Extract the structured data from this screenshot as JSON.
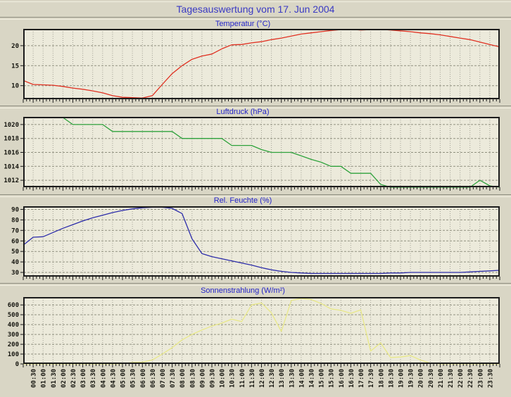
{
  "page": {
    "title": "Tagesauswertung vom 17. Jun 2004"
  },
  "colors": {
    "page_bg": "#d9d6c5",
    "plot_bg": "#eceadb",
    "border": "#1c1c1c",
    "grid_vertical": "#a3a295",
    "grid_horizontal": "#90907f",
    "title_text": "#3a3ac4",
    "chart_label_text": "#2424c8",
    "tick_text": "#15150f",
    "temperature_line": "#e03122",
    "pressure_line": "#2fa23c",
    "humidity_line": "#2d2daa",
    "solar_line": "#e8e888"
  },
  "x_axis": {
    "start_hour": 0,
    "end_hour": 24,
    "interval_hours": 0.5,
    "minor_tick_minutes": 10,
    "labels": [
      "00:30",
      "01:00",
      "01:30",
      "02:00",
      "02:30",
      "03:00",
      "03:30",
      "04:00",
      "04:30",
      "05:00",
      "05:30",
      "06:00",
      "06:30",
      "07:00",
      "07:30",
      "08:00",
      "08:30",
      "09:00",
      "09:30",
      "10:00",
      "10:30",
      "11:00",
      "11:30",
      "12:00",
      "12:30",
      "13:00",
      "13:30",
      "14:00",
      "14:30",
      "15:00",
      "15:30",
      "16:00",
      "16:30",
      "17:00",
      "17:30",
      "18:00",
      "18:30",
      "19:00",
      "19:30",
      "20:00",
      "20:30",
      "21:00",
      "21:30",
      "22:00",
      "22:30",
      "23:00",
      "23:30"
    ]
  },
  "chart_data": [
    {
      "type": "line",
      "title": "Temperatur (°C)",
      "color_key": "temperature_line",
      "ylim": [
        6.6,
        24.2
      ],
      "yticks": [
        10,
        15,
        20
      ],
      "grid": true,
      "values": [
        11.3,
        10.3,
        10.2,
        10.1,
        9.8,
        9.4,
        9.1,
        8.7,
        8.2,
        7.5,
        7.1,
        7.0,
        6.9,
        7.5,
        10.3,
        13.0,
        15.0,
        16.6,
        17.4,
        17.9,
        19.2,
        20.2,
        20.3,
        20.7,
        21.0,
        21.5,
        21.9,
        22.4,
        22.9,
        23.2,
        23.5,
        23.8,
        24.0,
        24.1,
        23.9,
        24.0,
        24.1,
        23.9,
        23.7,
        23.5,
        23.2,
        23.0,
        22.7,
        22.3,
        21.9,
        21.5,
        20.9,
        20.3,
        19.7
      ]
    },
    {
      "type": "line",
      "title": "Luftdruck (hPa)",
      "color_key": "pressure_line",
      "ylim": [
        1011,
        1021.1
      ],
      "yticks": [
        1012,
        1014,
        1016,
        1018,
        1020
      ],
      "grid": true,
      "values": [
        null,
        null,
        null,
        null,
        1021,
        1020,
        1020,
        1020,
        1020,
        1019,
        1019,
        1019,
        1019,
        1019,
        1019,
        1019,
        1018,
        1018,
        1018,
        1018,
        1018,
        1017,
        1017,
        1017,
        1016.4,
        1016,
        1016,
        1016,
        1015.5,
        1015,
        1014.6,
        1014,
        1014,
        1013,
        1013,
        1013,
        1011.4,
        1011,
        1011,
        1011,
        1011,
        1011,
        1011,
        1011,
        1011,
        1011,
        1012,
        1011.2,
        1011
      ]
    },
    {
      "type": "line",
      "title": "Rel. Feuchte (%)",
      "color_key": "humidity_line",
      "ylim": [
        26,
        93
      ],
      "yticks": [
        30,
        40,
        50,
        60,
        70,
        80,
        90
      ],
      "grid": true,
      "values": [
        56,
        63.5,
        64,
        68,
        72,
        75.5,
        79,
        82,
        84.5,
        87,
        89,
        90.5,
        91.5,
        92,
        92,
        91,
        86,
        62,
        48,
        45,
        43,
        41,
        39,
        37,
        34.5,
        32.5,
        31,
        30,
        29.5,
        29,
        29,
        29,
        29,
        29,
        29,
        29,
        29,
        29.5,
        29.5,
        30,
        30,
        30,
        30,
        30,
        30,
        30.5,
        31,
        31.5,
        32
      ]
    },
    {
      "type": "line",
      "title": "Sonnenstrahlung (W/m²)",
      "color_key": "solar_line",
      "ylim": [
        0,
        680
      ],
      "yticks": [
        0,
        100,
        200,
        300,
        400,
        500,
        600
      ],
      "grid": true,
      "values": [
        0,
        0,
        0,
        0,
        0,
        0,
        0,
        0,
        0,
        0,
        2,
        15,
        18,
        40,
        100,
        165,
        245,
        300,
        345,
        385,
        415,
        455,
        430,
        600,
        620,
        520,
        330,
        645,
        665,
        655,
        615,
        560,
        545,
        515,
        550,
        130,
        215,
        65,
        70,
        85,
        40,
        8,
        0,
        0,
        0,
        0,
        0,
        0,
        0
      ]
    }
  ]
}
